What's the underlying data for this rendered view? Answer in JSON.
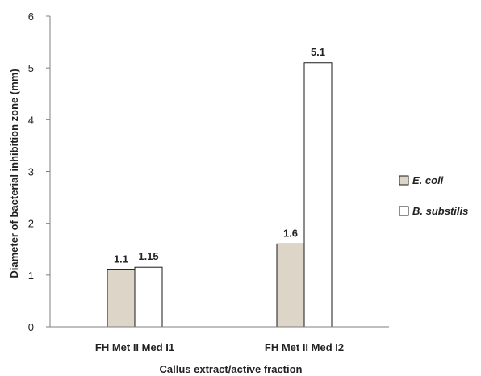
{
  "chart_data": {
    "type": "bar",
    "categories": [
      "FH Met II Med I1",
      "FH Met II Med I2"
    ],
    "series": [
      {
        "name": "E. coli",
        "values": [
          1.1,
          1.6
        ],
        "labels": [
          "1.1",
          "1.6"
        ],
        "color": "#ddd5c8"
      },
      {
        "name": "B. substilis",
        "values": [
          1.15,
          5.1
        ],
        "labels": [
          "1.15",
          "5.1"
        ],
        "color": "#ffffff"
      }
    ],
    "title": "",
    "xlabel": "Callus extract/active fraction",
    "ylabel": "Diameter of bacterial inhibition zone (mm)",
    "ylim": [
      0,
      6
    ],
    "yticks": [
      0,
      1,
      2,
      3,
      4,
      5,
      6
    ],
    "grid": false,
    "legend_position": "right"
  }
}
